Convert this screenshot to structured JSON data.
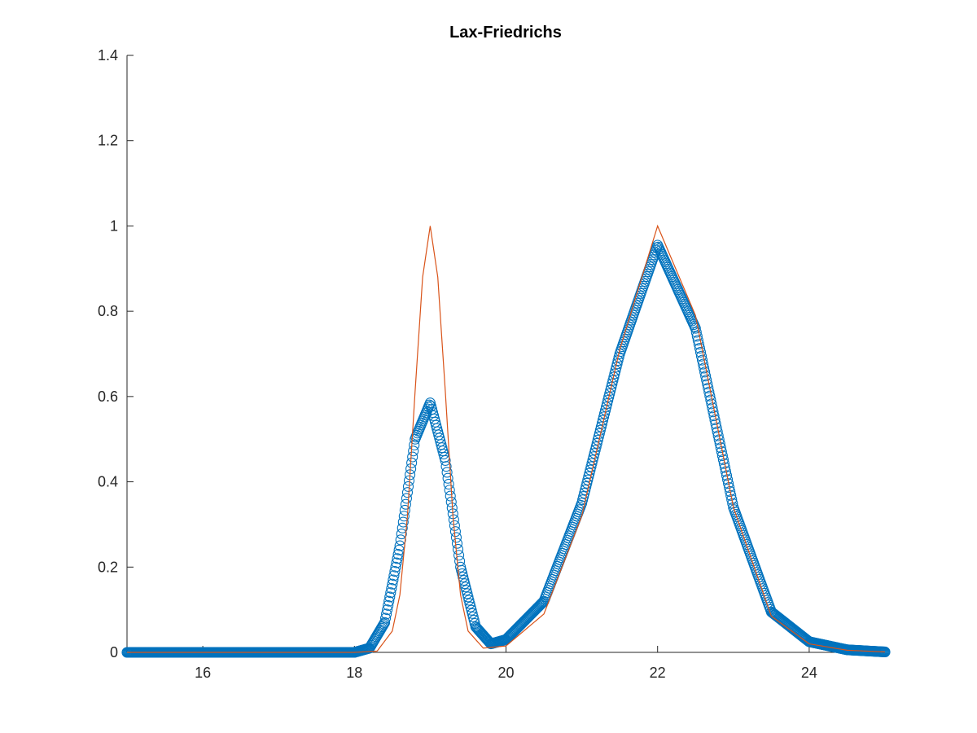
{
  "chart_data": {
    "type": "scatter",
    "title": "Lax-Friedrichs",
    "xlabel": "",
    "ylabel": "",
    "xlim": [
      15,
      25
    ],
    "ylim": [
      0,
      1.4
    ],
    "xticks": [
      16,
      18,
      20,
      22,
      24
    ],
    "yticks": [
      0,
      0.2,
      0.4,
      0.6,
      0.8,
      1,
      1.2,
      1.4
    ],
    "xtick_labels": [
      "16",
      "18",
      "20",
      "22",
      "24"
    ],
    "ytick_labels": [
      "0",
      "0.2",
      "0.4",
      "0.6",
      "0.8",
      "1",
      "1.2",
      "1.4"
    ],
    "grid": false,
    "legend": "none",
    "series": [
      {
        "style": "line",
        "color": "#d95319",
        "x": [
          15,
          18,
          18.3,
          18.5,
          18.6,
          18.7,
          18.8,
          18.9,
          19,
          19.1,
          19.2,
          19.3,
          19.4,
          19.5,
          19.7,
          20,
          20.5,
          21,
          21.5,
          22,
          22.5,
          23,
          23.5,
          24,
          24.5,
          25
        ],
        "y": [
          0,
          0,
          0.003,
          0.05,
          0.135,
          0.32,
          0.61,
          0.88,
          1,
          0.88,
          0.61,
          0.32,
          0.135,
          0.05,
          0.01,
          0.015,
          0.09,
          0.32,
          0.71,
          1,
          0.79,
          0.34,
          0.085,
          0.02,
          0.005,
          0.001
        ]
      },
      {
        "style": "markers",
        "marker": "o",
        "color": "#0072bd",
        "x": [
          15,
          18,
          18.2,
          18.4,
          18.6,
          18.8,
          19,
          19.2,
          19.4,
          19.6,
          19.8,
          20,
          20.5,
          21,
          21.5,
          22,
          22.5,
          23,
          23.5,
          24,
          24.5,
          25
        ],
        "y": [
          0,
          0,
          0.01,
          0.07,
          0.25,
          0.5,
          0.585,
          0.45,
          0.2,
          0.06,
          0.02,
          0.03,
          0.12,
          0.35,
          0.7,
          0.955,
          0.76,
          0.34,
          0.095,
          0.025,
          0.006,
          0.001
        ]
      }
    ]
  }
}
